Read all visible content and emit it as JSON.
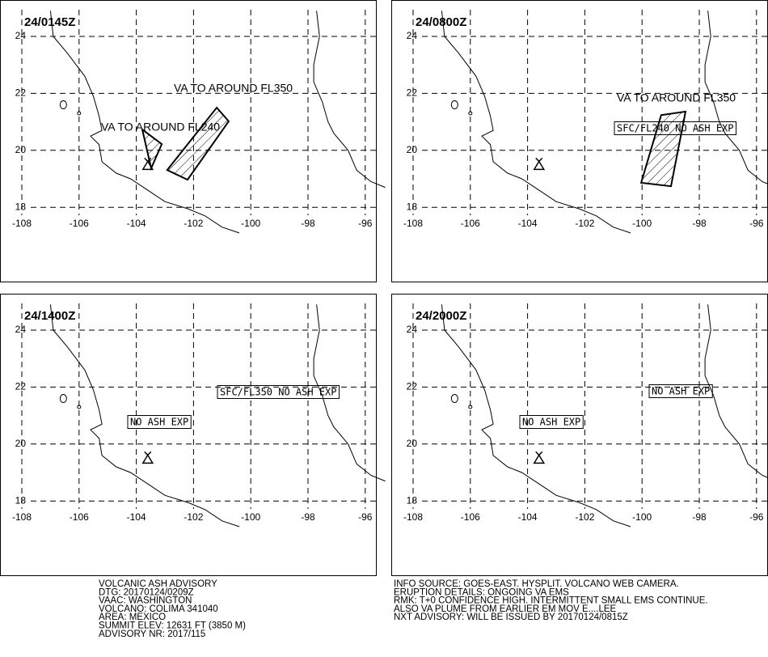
{
  "panels": [
    {
      "title": "24/0145Z",
      "annotations": [
        "VA TO AROUND FL350",
        "VA TO AROUND FL240"
      ]
    },
    {
      "title": "24/0800Z",
      "annotations": [
        "SFC/FL240 NO ASH EXP",
        "VA TO AROUND FL350"
      ]
    },
    {
      "title": "24/1400Z",
      "annotations": [
        "SFC/FL350 NO ASH EXP",
        "NO ASH EXP"
      ]
    },
    {
      "title": "24/2000Z",
      "annotations": [
        "NO ASH EXP",
        "NO ASH EXP"
      ]
    }
  ],
  "xticks": [
    -108,
    -106,
    -104,
    -102,
    -100,
    -98,
    -96
  ],
  "yticks": [
    18,
    20,
    22,
    24
  ],
  "footer": {
    "left": [
      "VOLCANIC ASH ADVISORY",
      "DTG: 20170124/0209Z",
      "VAAC: WASHINGTON",
      "VOLCANO: COLIMA 341040",
      "AREA: MEXICO",
      "SUMMIT ELEV: 12631 FT (3850 M)",
      "ADVISORY NR: 2017/115"
    ],
    "right": [
      "INFO SOURCE: GOES-EAST. HYSPLIT. VOLCANO WEB CAMERA.",
      "ERUPTION DETAILS: ONGOING VA EMS",
      "RMK: T+0 CONFIDENCE HIGH. INTERMITTENT SMALL EMS CONTINUE.",
      "ALSO VA PLUME FROM EARLIER EM MOV E....LEE",
      "NXT ADVISORY: WILL BE ISSUED BY 20170124/0815Z"
    ]
  }
}
